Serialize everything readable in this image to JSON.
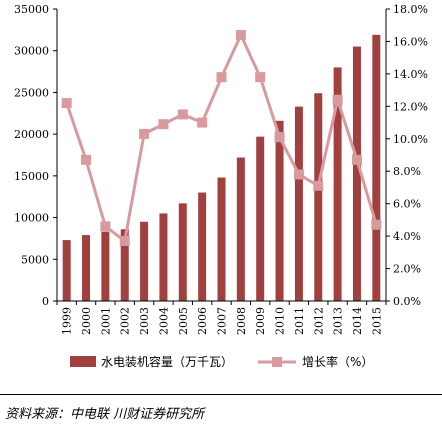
{
  "chart_data": {
    "type": "bar+line",
    "categories": [
      "1999",
      "2000",
      "2001",
      "2002",
      "2003",
      "2004",
      "2005",
      "2006",
      "2007",
      "2008",
      "2009",
      "2010",
      "2011",
      "2012",
      "2013",
      "2014",
      "2015"
    ],
    "series": [
      {
        "name": "水电装机容量（万千瓦）",
        "type": "bar",
        "axis": "left",
        "color": "#A0403F",
        "values": [
          7300,
          7900,
          8300,
          8600,
          9500,
          10500,
          11700,
          13000,
          14800,
          17200,
          19700,
          21600,
          23300,
          24900,
          28000,
          30500,
          31900
        ]
      },
      {
        "name": "增长率（%）",
        "type": "line",
        "axis": "right",
        "color": "#D89A9E",
        "values": [
          12.2,
          8.7,
          4.6,
          3.7,
          10.3,
          10.9,
          11.5,
          11.0,
          13.8,
          16.4,
          13.8,
          10.1,
          7.8,
          7.1,
          12.4,
          8.7,
          4.7
        ]
      }
    ],
    "y_left": {
      "ylim": [
        0,
        35000
      ],
      "ticks": [
        "0",
        "5000",
        "10000",
        "15000",
        "20000",
        "25000",
        "30000",
        "35000"
      ]
    },
    "y_right": {
      "ylim": [
        0,
        18
      ],
      "ticks": [
        "0.0%",
        "2.0%",
        "4.0%",
        "6.0%",
        "8.0%",
        "10.0%",
        "12.0%",
        "14.0%",
        "16.0%",
        "18.0%"
      ]
    },
    "legend": {
      "position": "bottom"
    },
    "grid": false
  },
  "source_text": "资料来源：中电联 川财证券研究所"
}
